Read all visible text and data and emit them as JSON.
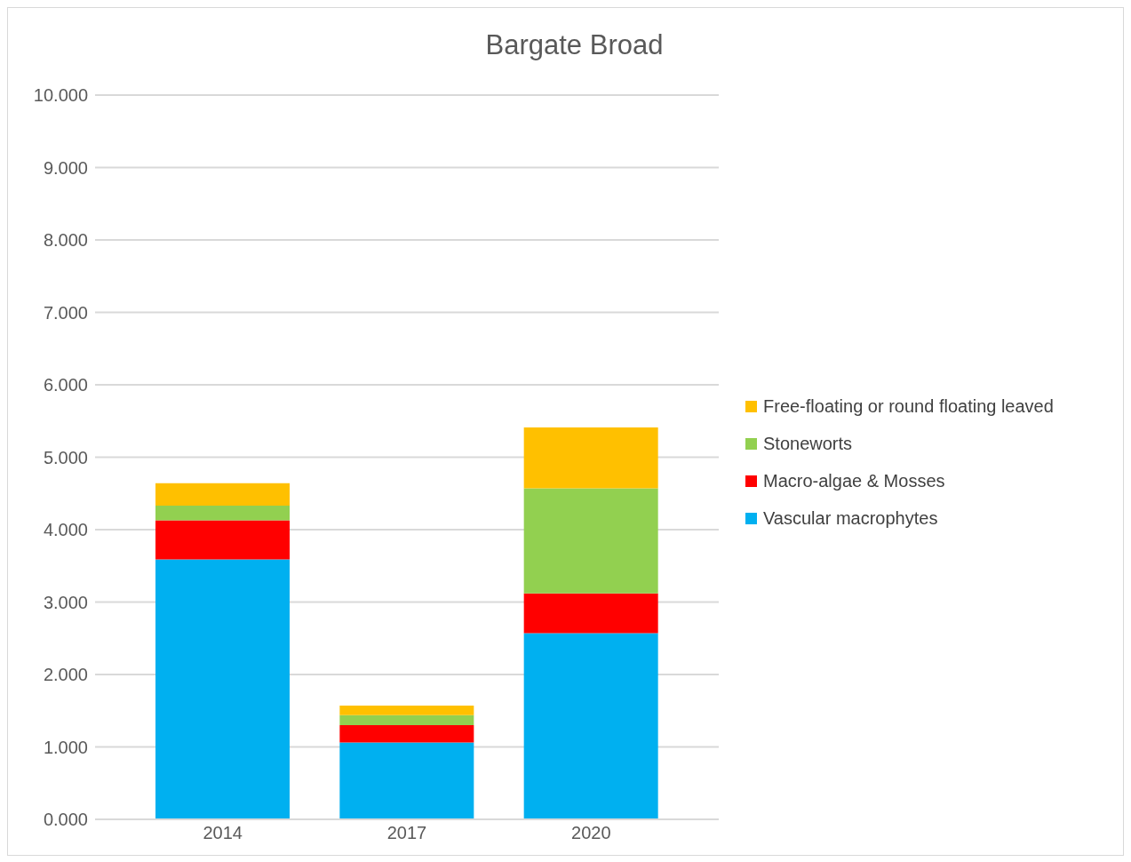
{
  "chart_data": {
    "type": "bar",
    "title": "Bargate Broad",
    "categories": [
      "2014",
      "2017",
      "2020"
    ],
    "stacked": true,
    "series": [
      {
        "name": "Vascular macrophytes",
        "color": "#00b0f0",
        "values": [
          3.59,
          1.06,
          2.57
        ]
      },
      {
        "name": "Macro-algae & Mosses",
        "color": "#ff0000",
        "values": [
          0.54,
          0.24,
          0.55
        ]
      },
      {
        "name": "Stoneworts",
        "color": "#92d050",
        "values": [
          0.2,
          0.14,
          1.45
        ]
      },
      {
        "name": "Free-floating or round floating leaved",
        "color": "#ffc000",
        "values": [
          0.31,
          0.13,
          0.84
        ]
      }
    ],
    "ylim": [
      0,
      10
    ],
    "yticks": [
      {
        "value": 0,
        "label": "0.000"
      },
      {
        "value": 1,
        "label": "1.000"
      },
      {
        "value": 2,
        "label": "2.000"
      },
      {
        "value": 3,
        "label": "3.000"
      },
      {
        "value": 4,
        "label": "4.000"
      },
      {
        "value": 5,
        "label": "5.000"
      },
      {
        "value": 6,
        "label": "6.000"
      },
      {
        "value": 7,
        "label": "7.000"
      },
      {
        "value": 8,
        "label": "8.000"
      },
      {
        "value": 9,
        "label": "9.000"
      },
      {
        "value": 10,
        "label": "10.000"
      }
    ],
    "grid": "y",
    "legend": "right"
  }
}
